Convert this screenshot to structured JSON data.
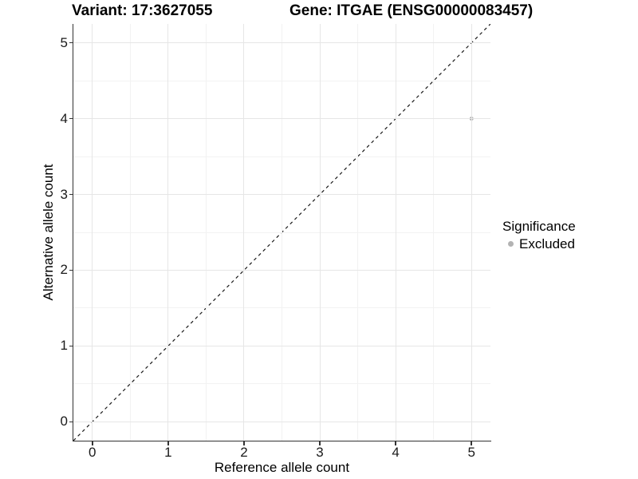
{
  "chart_data": {
    "type": "scatter",
    "title_left": "Variant: 17:3627055",
    "title_right": "Gene: ITGAE (ENSG00000083457)",
    "xlabel": "Reference allele count",
    "ylabel": "Alternative allele count",
    "xlim": [
      -0.25,
      5.25
    ],
    "ylim": [
      -0.25,
      5.25
    ],
    "x_ticks": [
      0,
      1,
      2,
      3,
      4,
      5
    ],
    "y_ticks": [
      0,
      1,
      2,
      3,
      4,
      5
    ],
    "x_minor_ticks": [
      0.5,
      1.5,
      2.5,
      3.5,
      4.5
    ],
    "y_minor_ticks": [
      0.5,
      1.5,
      2.5,
      3.5,
      4.5
    ],
    "grid": true,
    "reference_line": {
      "style": "dashed",
      "from": [
        -0.25,
        -0.25
      ],
      "to": [
        5.25,
        5.25
      ],
      "slope": 1,
      "intercept": 0
    },
    "series": [
      {
        "name": "Excluded",
        "color": "#b3b3b3",
        "points": [
          [
            5,
            4
          ]
        ]
      }
    ],
    "legend": {
      "title": "Significance",
      "position": "right",
      "items": [
        {
          "label": "Excluded",
          "color": "#b3b3b3"
        }
      ]
    }
  },
  "colors": {
    "background": "#ffffff",
    "axis_line": "#333333",
    "tick_mark": "#333333",
    "tick_text": "#1a1a1a",
    "grid_major": "#e6e6e6",
    "grid_minor": "#f2f2f2",
    "dashed_line": "#1a1a1a",
    "point": "#b3b3b3"
  }
}
